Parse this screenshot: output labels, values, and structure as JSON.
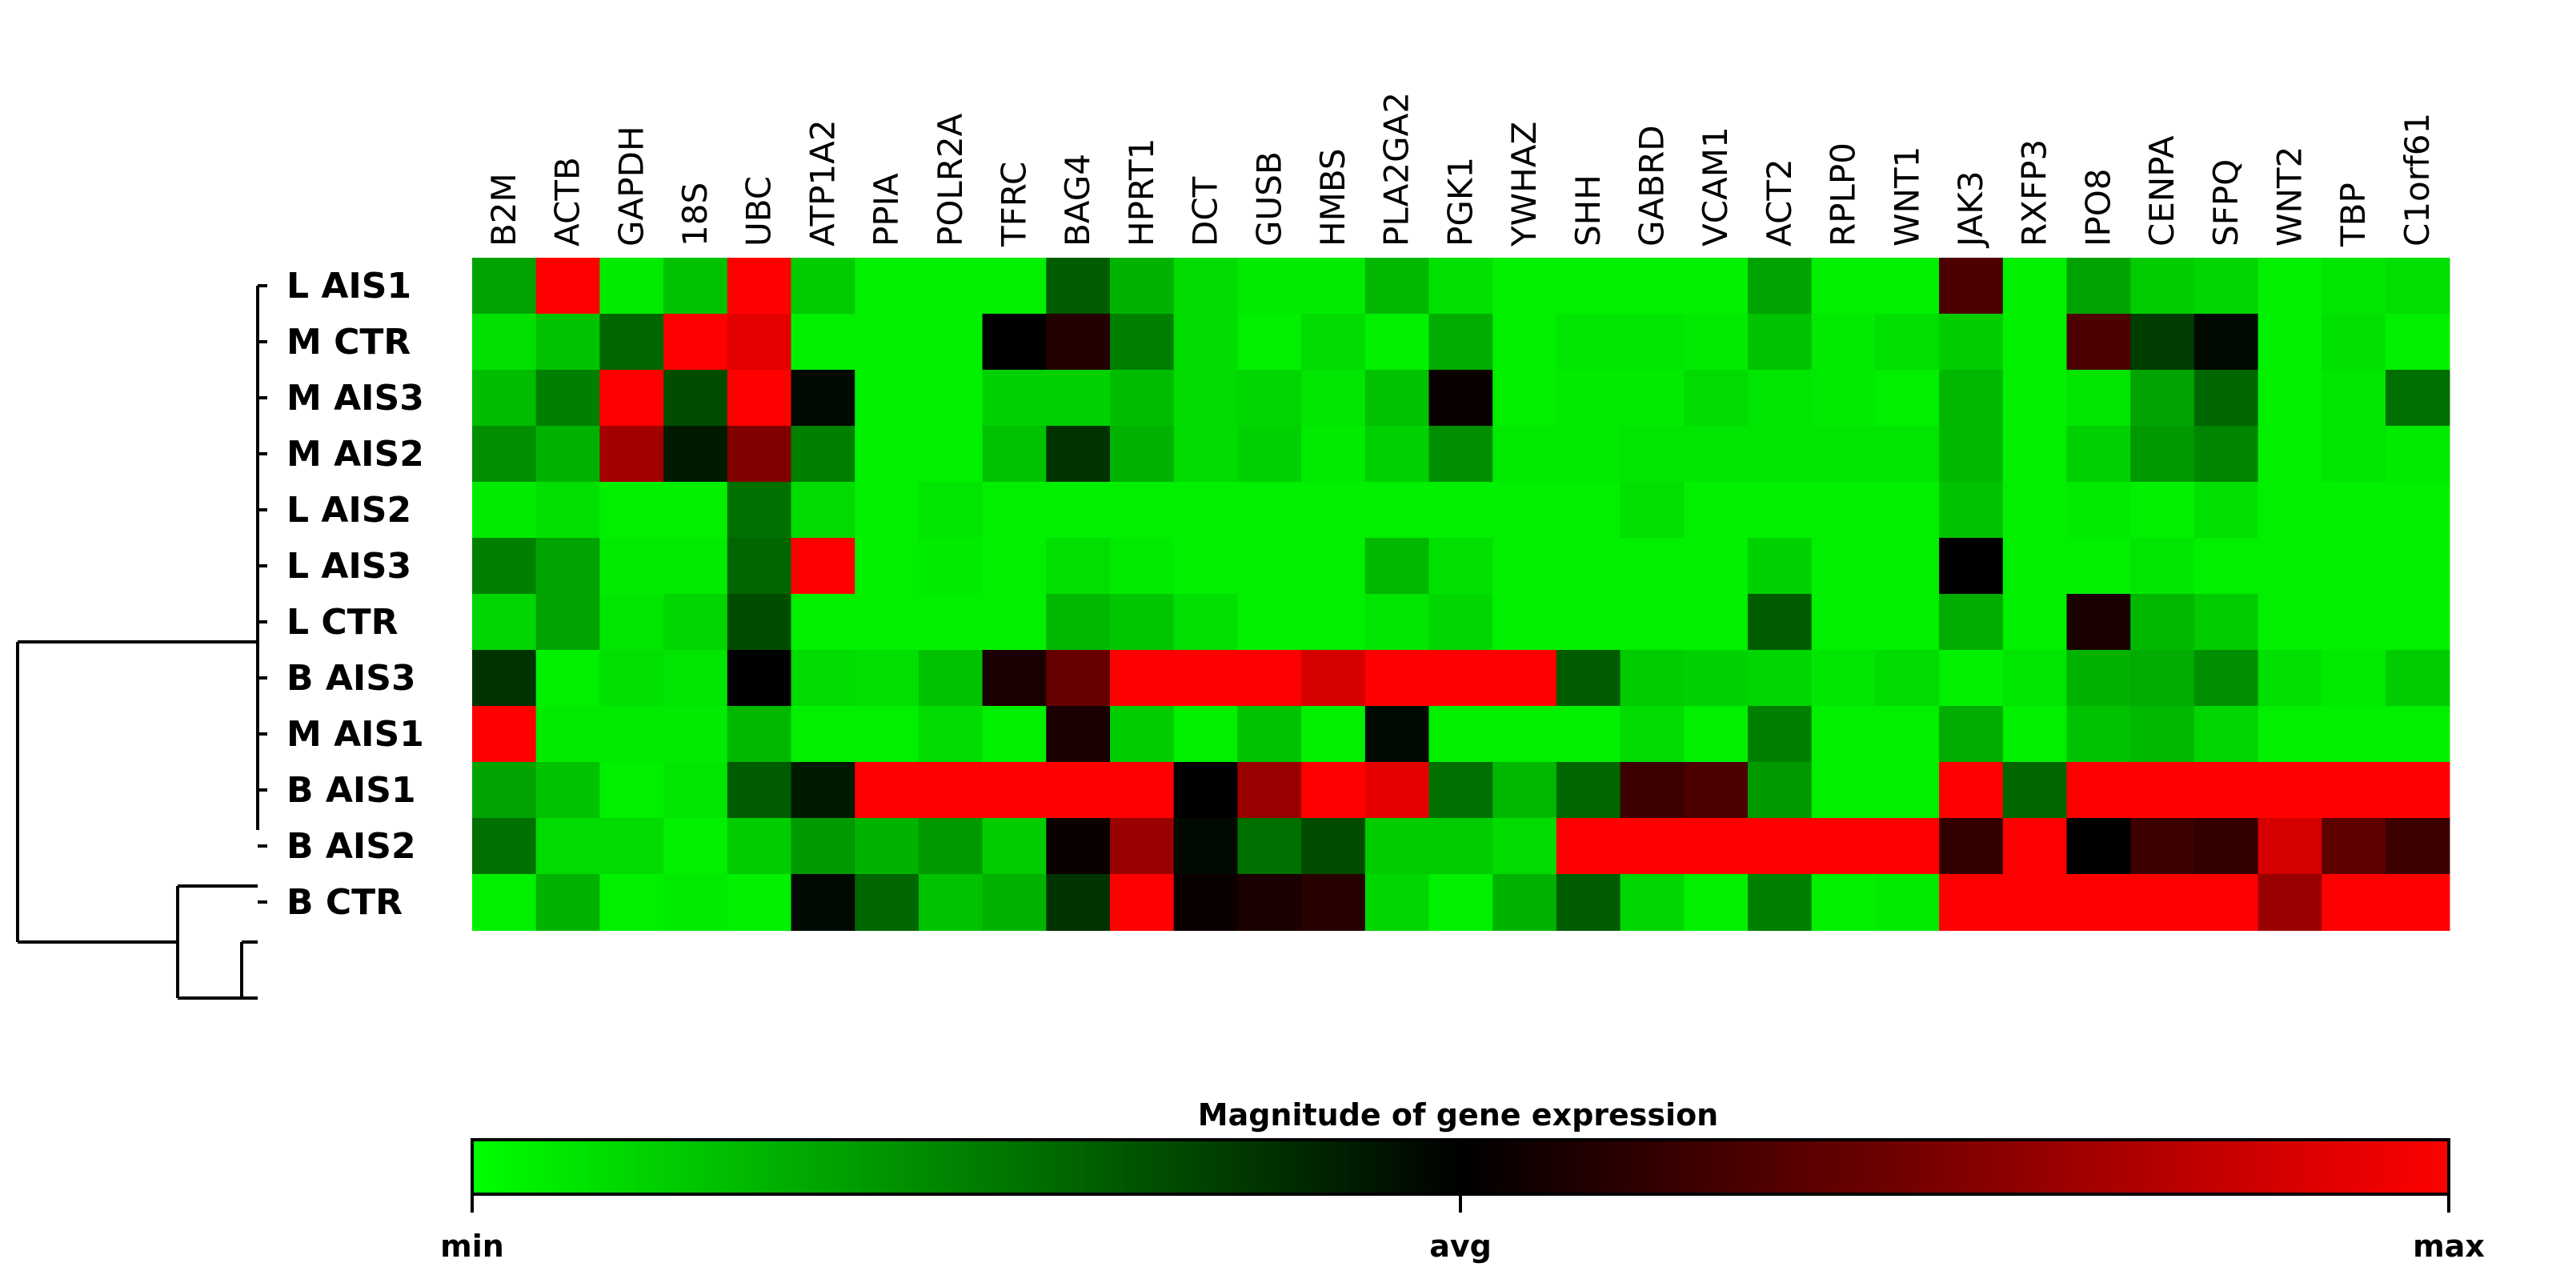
{
  "chart_data": {
    "type": "heatmap",
    "columns": [
      "B2M",
      "ACTB",
      "GAPDH",
      "18S",
      "UBC",
      "ATP1A2",
      "PPIA",
      "POLR2A",
      "TFRC",
      "BAG4",
      "HPRT1",
      "DCT",
      "GUSB",
      "HMBS",
      "PLA2GA2",
      "PGK1",
      "YWHAZ",
      "SHH",
      "GABRD",
      "VCAM1",
      "ACT2",
      "RPLP0",
      "WNT1",
      "JAK3",
      "RXFP3",
      "IPO8",
      "CENPA",
      "SFPQ",
      "WNT2",
      "TBP",
      "C1orf61"
    ],
    "rows": [
      "L AIS1",
      "M CTR",
      "M AIS3",
      "M AIS2",
      "L AIS2",
      "L AIS3",
      "L CTR",
      "B AIS3",
      "M AIS1",
      "B AIS1",
      "B AIS2",
      "B CTR"
    ],
    "values": [
      [
        0.18,
        1.0,
        0.04,
        0.12,
        1.0,
        0.1,
        0.03,
        0.03,
        0.03,
        0.32,
        0.15,
        0.07,
        0.04,
        0.04,
        0.14,
        0.06,
        0.03,
        0.03,
        0.03,
        0.03,
        0.18,
        0.03,
        0.03,
        0.65,
        0.03,
        0.18,
        0.1,
        0.08,
        0.03,
        0.05,
        0.06
      ],
      [
        0.06,
        0.12,
        0.3,
        1.0,
        0.95,
        0.03,
        0.03,
        0.03,
        0.5,
        0.57,
        0.25,
        0.07,
        0.03,
        0.07,
        0.03,
        0.16,
        0.03,
        0.05,
        0.05,
        0.04,
        0.12,
        0.04,
        0.06,
        0.1,
        0.03,
        0.65,
        0.38,
        0.48,
        0.03,
        0.06,
        0.03
      ],
      [
        0.13,
        0.25,
        1.0,
        0.35,
        1.0,
        0.48,
        0.03,
        0.03,
        0.09,
        0.09,
        0.13,
        0.07,
        0.08,
        0.05,
        0.12,
        0.52,
        0.03,
        0.04,
        0.04,
        0.07,
        0.05,
        0.04,
        0.03,
        0.14,
        0.03,
        0.05,
        0.18,
        0.3,
        0.03,
        0.05,
        0.28
      ],
      [
        0.22,
        0.15,
        0.82,
        0.45,
        0.75,
        0.25,
        0.03,
        0.03,
        0.12,
        0.4,
        0.15,
        0.07,
        0.09,
        0.04,
        0.09,
        0.22,
        0.04,
        0.04,
        0.05,
        0.05,
        0.05,
        0.05,
        0.05,
        0.14,
        0.03,
        0.09,
        0.2,
        0.24,
        0.03,
        0.05,
        0.04
      ],
      [
        0.04,
        0.06,
        0.03,
        0.03,
        0.28,
        0.07,
        0.03,
        0.05,
        0.03,
        0.03,
        0.03,
        0.03,
        0.03,
        0.03,
        0.03,
        0.03,
        0.03,
        0.03,
        0.06,
        0.03,
        0.03,
        0.03,
        0.03,
        0.12,
        0.03,
        0.04,
        0.03,
        0.06,
        0.03,
        0.03,
        0.03
      ],
      [
        0.25,
        0.18,
        0.04,
        0.04,
        0.3,
        1.0,
        0.03,
        0.04,
        0.03,
        0.06,
        0.04,
        0.03,
        0.03,
        0.03,
        0.14,
        0.06,
        0.03,
        0.03,
        0.03,
        0.03,
        0.09,
        0.03,
        0.03,
        0.5,
        0.03,
        0.03,
        0.05,
        0.03,
        0.03,
        0.03,
        0.03
      ],
      [
        0.08,
        0.18,
        0.05,
        0.08,
        0.35,
        0.03,
        0.03,
        0.03,
        0.03,
        0.14,
        0.11,
        0.06,
        0.03,
        0.03,
        0.05,
        0.08,
        0.03,
        0.03,
        0.03,
        0.03,
        0.32,
        0.03,
        0.03,
        0.16,
        0.03,
        0.55,
        0.14,
        0.1,
        0.03,
        0.03,
        0.03
      ],
      [
        0.4,
        0.03,
        0.06,
        0.05,
        0.5,
        0.07,
        0.06,
        0.12,
        0.55,
        0.7,
        1.0,
        1.0,
        1.0,
        0.92,
        1.0,
        1.0,
        1.0,
        0.32,
        0.1,
        0.09,
        0.08,
        0.05,
        0.07,
        0.03,
        0.05,
        0.15,
        0.16,
        0.22,
        0.06,
        0.04,
        0.1
      ],
      [
        1.0,
        0.04,
        0.04,
        0.04,
        0.14,
        0.03,
        0.03,
        0.07,
        0.03,
        0.55,
        0.1,
        0.03,
        0.12,
        0.03,
        0.48,
        0.03,
        0.03,
        0.03,
        0.07,
        0.03,
        0.25,
        0.03,
        0.03,
        0.16,
        0.03,
        0.12,
        0.14,
        0.08,
        0.03,
        0.03,
        0.03
      ],
      [
        0.18,
        0.12,
        0.03,
        0.05,
        0.32,
        0.45,
        1.0,
        1.0,
        1.0,
        1.0,
        1.0,
        0.5,
        0.8,
        1.0,
        0.95,
        0.28,
        0.14,
        0.3,
        0.62,
        0.65,
        0.2,
        0.03,
        0.03,
        1.0,
        0.3,
        1.0,
        1.0,
        1.0,
        1.0,
        1.0,
        1.0
      ],
      [
        0.28,
        0.07,
        0.07,
        0.03,
        0.1,
        0.2,
        0.15,
        0.2,
        0.1,
        0.52,
        0.8,
        0.48,
        0.28,
        0.35,
        0.1,
        0.1,
        0.07,
        1.0,
        1.0,
        1.0,
        1.0,
        1.0,
        1.0,
        0.6,
        1.0,
        0.5,
        0.62,
        0.6,
        0.92,
        0.68,
        0.62
      ],
      [
        0.03,
        0.15,
        0.03,
        0.04,
        0.03,
        0.48,
        0.3,
        0.12,
        0.15,
        0.4,
        1.0,
        0.52,
        0.55,
        0.58,
        0.08,
        0.03,
        0.15,
        0.32,
        0.08,
        0.03,
        0.25,
        0.03,
        0.04,
        1.0,
        1.0,
        1.0,
        1.0,
        1.0,
        0.8,
        1.0,
        1.0
      ]
    ],
    "colorbar": {
      "title": "Magnitude of gene expression",
      "tick_labels": [
        "min",
        "avg",
        "max"
      ],
      "colors": [
        "#00ff00",
        "#000000",
        "#ff0000"
      ]
    },
    "dendrogram": "rows, left"
  }
}
